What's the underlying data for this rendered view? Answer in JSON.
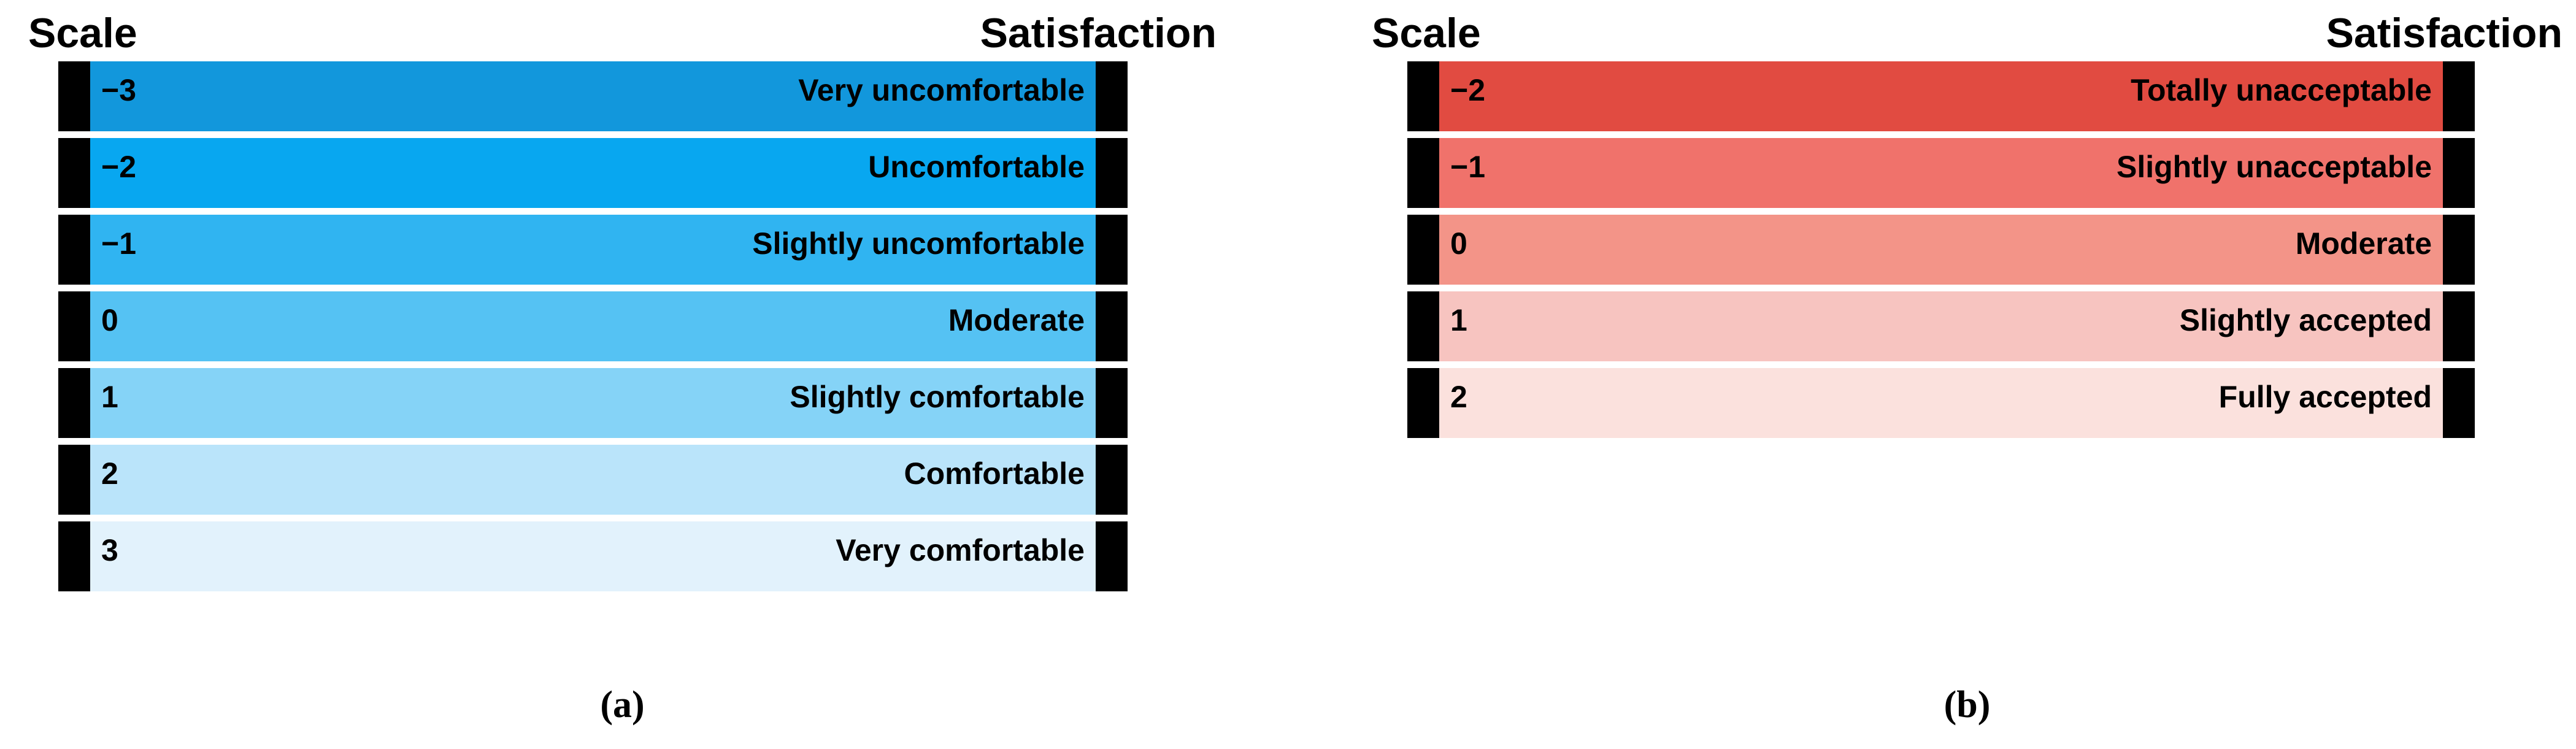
{
  "figure": {
    "colors": {
      "end_cap": "#000000",
      "background": "#FFFFFF",
      "text": "#000000"
    },
    "panels": [
      {
        "caption": "(a)",
        "header": {
          "left": "Scale",
          "right": "Satisfaction"
        },
        "rows": [
          {
            "scale": "−3",
            "label": "Very uncomfortable",
            "color": "#1297DC"
          },
          {
            "scale": "−2",
            "label": "Uncomfortable",
            "color": "#08A7F0"
          },
          {
            "scale": "−1",
            "label": "Slightly uncomfortable",
            "color": "#30B4F1"
          },
          {
            "scale": "0",
            "label": "Moderate",
            "color": "#55C2F3"
          },
          {
            "scale": "1",
            "label": "Slightly comfortable",
            "color": "#85D3F7"
          },
          {
            "scale": "2",
            "label": "Comfortable",
            "color": "#BAE4FA"
          },
          {
            "scale": "3",
            "label": "Very comfortable",
            "color": "#E2F2FC"
          }
        ]
      },
      {
        "caption": "(b)",
        "header": {
          "left": "Scale",
          "right": "Satisfaction"
        },
        "rows": [
          {
            "scale": "−2",
            "label": "Totally unacceptable",
            "color": "#E14B41"
          },
          {
            "scale": "−1",
            "label": "Slightly unacceptable",
            "color": "#F0726B"
          },
          {
            "scale": "0",
            "label": "Moderate",
            "color": "#F39488"
          },
          {
            "scale": "1",
            "label": "Slightly accepted",
            "color": "#F7C4C0"
          },
          {
            "scale": "2",
            "label": "Fully accepted",
            "color": "#FBE1DD"
          }
        ]
      }
    ]
  },
  "chart_data": [
    {
      "type": "table",
      "caption": "(a)",
      "columns": [
        "Scale",
        "Satisfaction"
      ],
      "rows": [
        [
          -3,
          "Very uncomfortable"
        ],
        [
          -2,
          "Uncomfortable"
        ],
        [
          -1,
          "Slightly uncomfortable"
        ],
        [
          0,
          "Moderate"
        ],
        [
          1,
          "Slightly comfortable"
        ],
        [
          2,
          "Comfortable"
        ],
        [
          3,
          "Very comfortable"
        ]
      ],
      "row_colors": [
        "#1297DC",
        "#08A7F0",
        "#30B4F1",
        "#55C2F3",
        "#85D3F7",
        "#BAE4FA",
        "#E2F2FC"
      ],
      "legend_position": "none",
      "grid": false
    },
    {
      "type": "table",
      "caption": "(b)",
      "columns": [
        "Scale",
        "Satisfaction"
      ],
      "rows": [
        [
          -2,
          "Totally unacceptable"
        ],
        [
          -1,
          "Slightly unacceptable"
        ],
        [
          0,
          "Moderate"
        ],
        [
          1,
          "Slightly accepted"
        ],
        [
          2,
          "Fully accepted"
        ]
      ],
      "row_colors": [
        "#E14B41",
        "#F0726B",
        "#F39488",
        "#F7C4C0",
        "#FBE1DD"
      ],
      "legend_position": "none",
      "grid": false
    }
  ]
}
